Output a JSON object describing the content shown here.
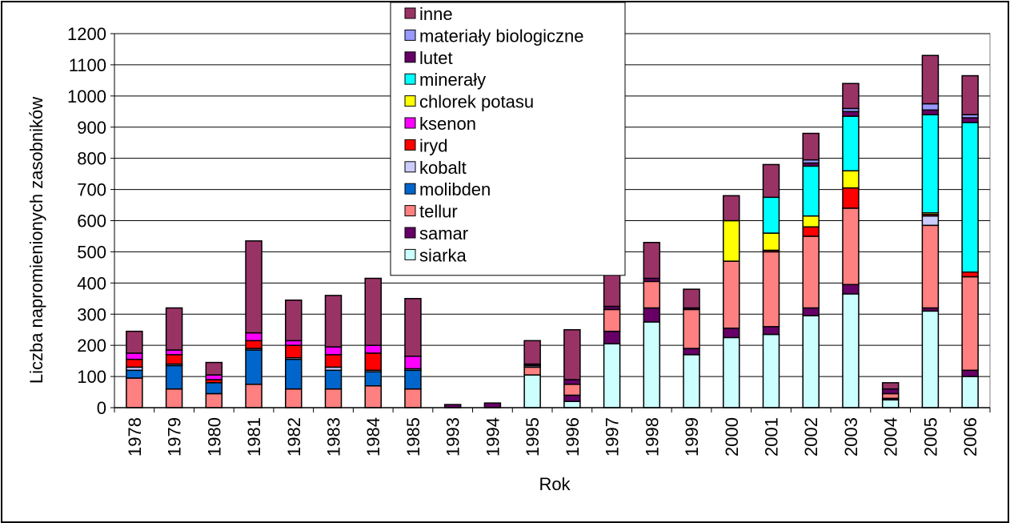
{
  "chart_data": {
    "type": "bar",
    "stacked": true,
    "xlabel": "Rok",
    "ylabel": "Liczba napromienionych zasobników",
    "ylim": [
      0,
      1200
    ],
    "yticks": [
      0,
      100,
      200,
      300,
      400,
      500,
      600,
      700,
      800,
      900,
      1000,
      1100,
      1200
    ],
    "grid": true,
    "legend_position": "top-center",
    "categories": [
      "1978",
      "1979",
      "1980",
      "1981",
      "1982",
      "1983",
      "1984",
      "1985",
      "1993",
      "1994",
      "1995",
      "1996",
      "1997",
      "1998",
      "1999",
      "2000",
      "2001",
      "2002",
      "2003",
      "2004",
      "2005",
      "2006"
    ],
    "series": [
      {
        "name": "siarka",
        "color": "#CCFFFF",
        "values": [
          0,
          0,
          0,
          0,
          0,
          0,
          0,
          0,
          0,
          0,
          105,
          20,
          205,
          275,
          170,
          225,
          235,
          295,
          365,
          25,
          310,
          100
        ]
      },
      {
        "name": "samar",
        "color": "#660066",
        "values": [
          0,
          0,
          0,
          0,
          0,
          0,
          0,
          0,
          10,
          15,
          0,
          20,
          40,
          45,
          20,
          30,
          25,
          25,
          30,
          5,
          10,
          20
        ]
      },
      {
        "name": "tellur",
        "color": "#FF8080",
        "values": [
          95,
          60,
          45,
          75,
          60,
          60,
          70,
          60,
          0,
          0,
          25,
          35,
          70,
          85,
          125,
          215,
          240,
          230,
          245,
          15,
          265,
          300
        ]
      },
      {
        "name": "molibden",
        "color": "#0066CC",
        "values": [
          25,
          75,
          35,
          110,
          95,
          60,
          45,
          60,
          0,
          0,
          0,
          0,
          0,
          0,
          0,
          0,
          0,
          0,
          0,
          0,
          0,
          0
        ]
      },
      {
        "name": "kobalt",
        "color": "#CCCCFF",
        "values": [
          10,
          5,
          0,
          5,
          5,
          10,
          5,
          5,
          0,
          0,
          5,
          0,
          0,
          0,
          0,
          0,
          0,
          0,
          0,
          0,
          30,
          0
        ]
      },
      {
        "name": "iryd",
        "color": "#FF0000",
        "values": [
          25,
          30,
          10,
          25,
          40,
          40,
          55,
          0,
          0,
          0,
          0,
          0,
          0,
          0,
          0,
          0,
          5,
          30,
          65,
          0,
          5,
          15
        ]
      },
      {
        "name": "ksenon",
        "color": "#FF00FF",
        "values": [
          20,
          15,
          15,
          25,
          15,
          25,
          25,
          40,
          0,
          0,
          0,
          0,
          0,
          0,
          0,
          0,
          0,
          0,
          0,
          0,
          0,
          0
        ]
      },
      {
        "name": "chlorek potasu",
        "color": "#FFFF00",
        "values": [
          0,
          0,
          0,
          0,
          0,
          0,
          0,
          0,
          0,
          0,
          0,
          0,
          0,
          0,
          0,
          130,
          55,
          35,
          55,
          0,
          5,
          0
        ]
      },
      {
        "name": "minerały",
        "color": "#00FFFF",
        "values": [
          0,
          0,
          0,
          0,
          0,
          0,
          0,
          0,
          0,
          0,
          0,
          0,
          0,
          0,
          0,
          0,
          115,
          160,
          175,
          0,
          315,
          480
        ]
      },
      {
        "name": "lutet",
        "color": "#660066",
        "values": [
          0,
          0,
          0,
          0,
          0,
          0,
          0,
          0,
          0,
          0,
          5,
          15,
          10,
          10,
          5,
          0,
          0,
          10,
          15,
          15,
          15,
          15
        ]
      },
      {
        "name": "materiały biologiczne",
        "color": "#9999FF",
        "values": [
          0,
          0,
          0,
          0,
          0,
          0,
          0,
          0,
          0,
          0,
          0,
          0,
          0,
          0,
          0,
          0,
          0,
          10,
          10,
          0,
          20,
          10
        ]
      },
      {
        "name": "inne",
        "color": "#993366",
        "values": [
          70,
          135,
          40,
          295,
          130,
          165,
          215,
          185,
          0,
          0,
          75,
          160,
          105,
          115,
          60,
          80,
          105,
          85,
          80,
          20,
          155,
          125
        ]
      }
    ]
  }
}
